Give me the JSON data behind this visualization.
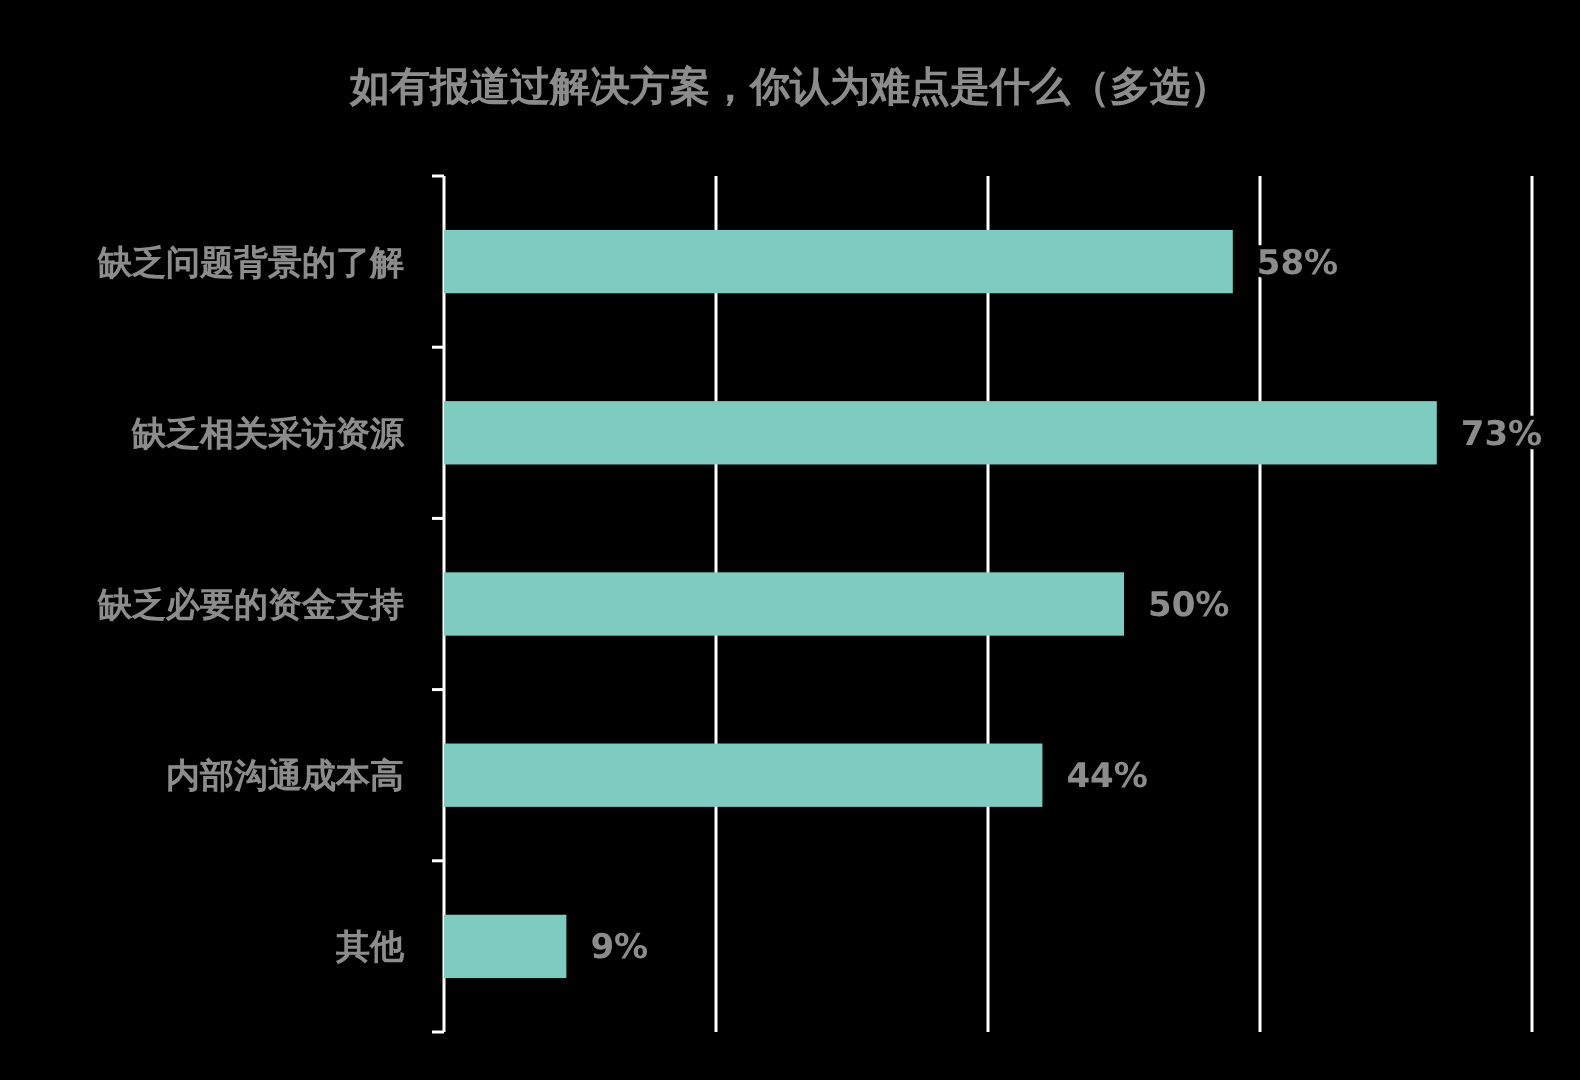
{
  "chart_data": {
    "type": "bar",
    "orientation": "horizontal",
    "title": "如有报道过解决方案，你认为难点是什么（多选）",
    "categories": [
      "缺乏问题背景的了解",
      "缺乏相关采访资源",
      "缺乏必要的资金支持",
      "内部沟通成本高",
      "其他"
    ],
    "values": [
      58,
      73,
      50,
      44,
      9
    ],
    "value_labels": [
      "58%",
      "73%",
      "50%",
      "44%",
      "9%"
    ],
    "color": "#7ecbbf",
    "xlim": [
      0,
      80
    ],
    "xticks": [
      {
        "value": 0,
        "label": null
      },
      {
        "value": 20,
        "label": null
      },
      {
        "value": 40,
        "label": null
      },
      {
        "value": 60,
        "label": null
      },
      {
        "value": 80,
        "label": null
      }
    ],
    "tick_labels": "y",
    "grid": "x"
  }
}
